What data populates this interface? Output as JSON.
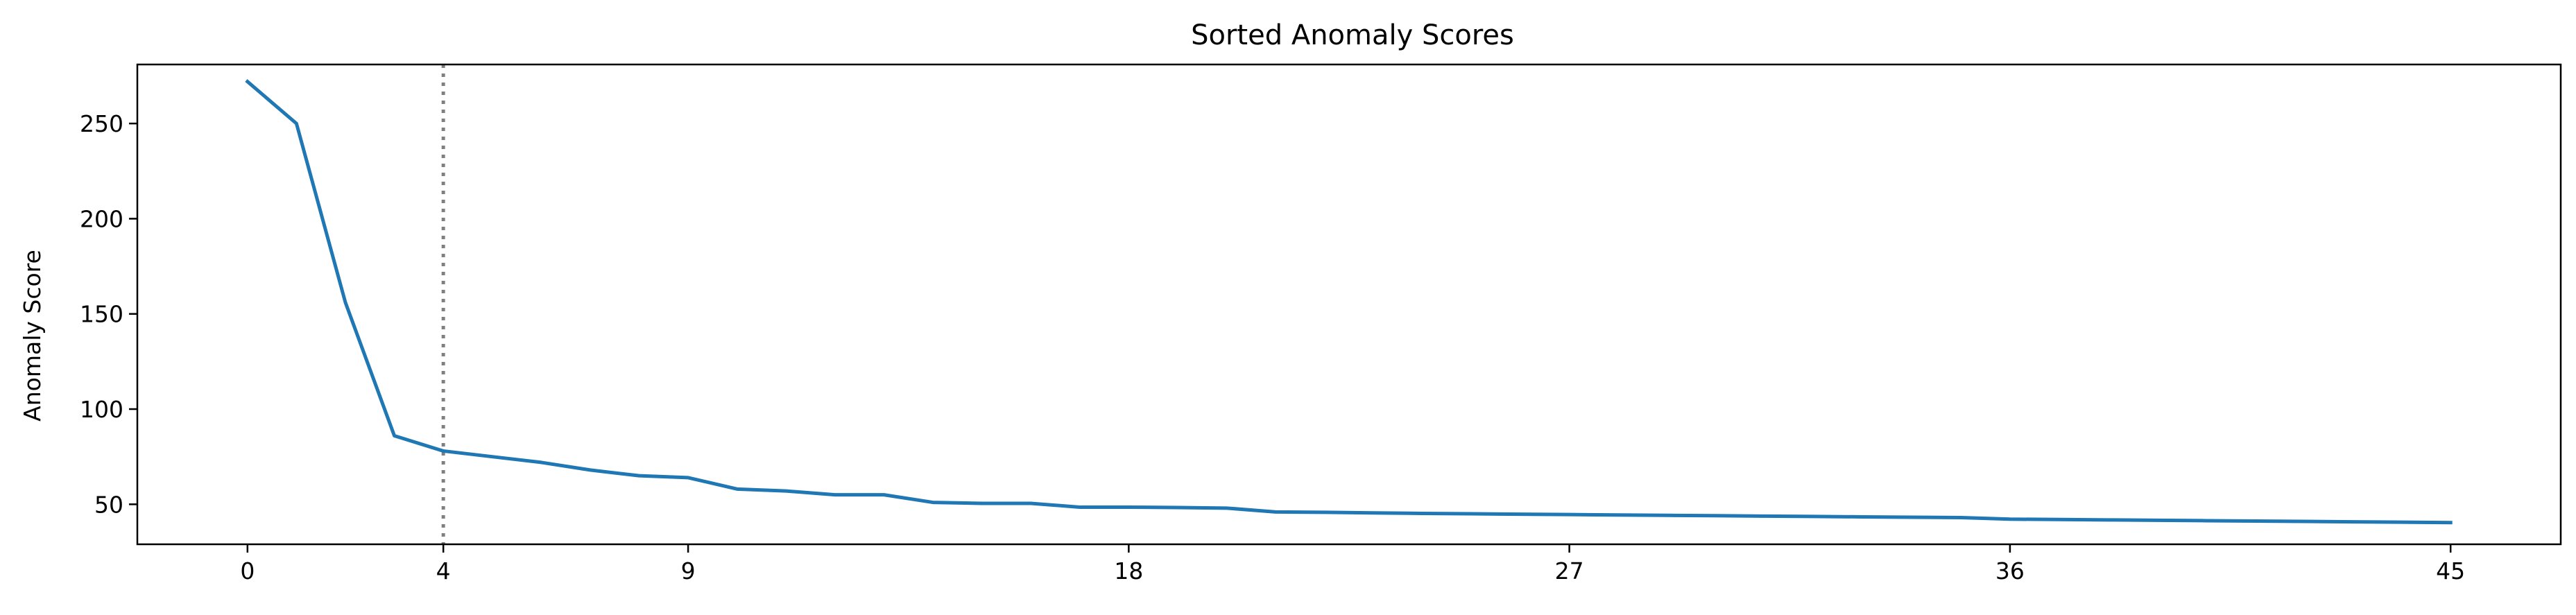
{
  "chart_data": {
    "type": "line",
    "title": "Sorted Anomaly Scores",
    "xlabel": "",
    "ylabel": "Anomaly Score",
    "xlim": [
      -2.25,
      47.25
    ],
    "ylim": [
      29,
      281
    ],
    "xticks": [
      0,
      4,
      9,
      18,
      27,
      36,
      45
    ],
    "yticks": [
      50,
      100,
      150,
      200,
      250
    ],
    "grid": false,
    "threshold_x": 4,
    "colors": {
      "line": "#1f77b4",
      "threshold": "#808080"
    },
    "series": [
      {
        "x": [
          0,
          1,
          2,
          3,
          4,
          5,
          6,
          7,
          8,
          9,
          10,
          11,
          12,
          13,
          14,
          15,
          16,
          17,
          18,
          19,
          20,
          21,
          22,
          23,
          24,
          25,
          26,
          27,
          28,
          29,
          30,
          31,
          32,
          33,
          34,
          35,
          36,
          37,
          38,
          39,
          40,
          41,
          42,
          43,
          44,
          45
        ],
        "values": [
          272,
          250,
          156,
          86,
          78,
          75,
          72,
          68,
          65,
          64,
          58,
          57,
          55,
          55,
          51,
          50.5,
          50.5,
          48.5,
          48.5,
          48.3,
          48,
          46,
          45.8,
          45.5,
          45.2,
          45,
          44.8,
          44.6,
          44.4,
          44.2,
          44,
          43.8,
          43.6,
          43.4,
          43.2,
          43,
          42.2,
          42,
          41.8,
          41.6,
          41.4,
          41.2,
          41,
          40.8,
          40.6,
          40.4
        ]
      }
    ]
  }
}
